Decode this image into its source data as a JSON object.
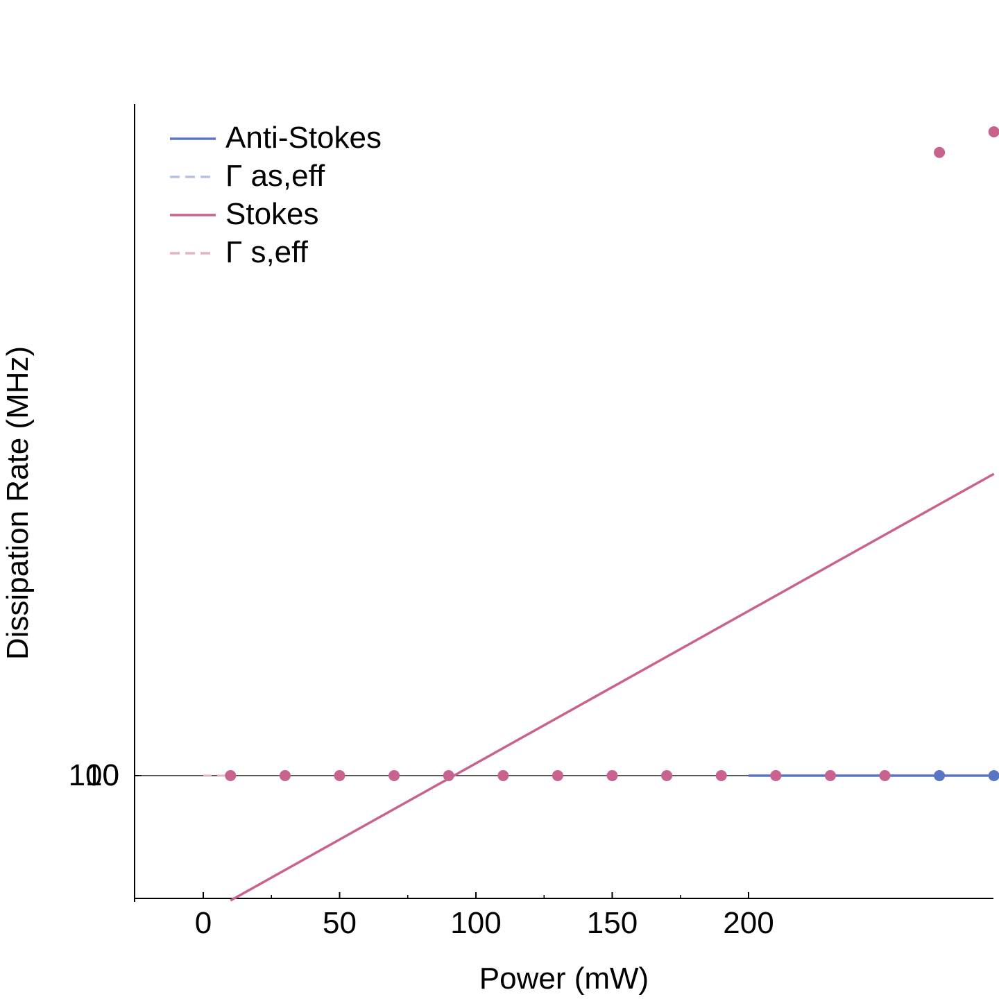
{
  "chart_data": {
    "type": "line",
    "xlabel": "Power (mW)",
    "ylabel": "Dissipation Rate (MHz)",
    "x_ticks": [
      "0",
      "50",
      "100",
      "150",
      "200"
    ],
    "y_tick_labels": [
      "10",
      "100"
    ],
    "xlim": [
      -25,
      290
    ],
    "legend": {
      "placement": "top-left",
      "entries": [
        {
          "label": "Anti-Stokes",
          "color": "#5b75c5",
          "style": "solid"
        },
        {
          "label": "Γ as,eff",
          "color": "#b7c2e6",
          "style": "dashed"
        },
        {
          "label": "Stokes",
          "color": "#c8628e",
          "style": "solid"
        },
        {
          "label": "Γ s,eff",
          "color": "#e4b2c7",
          "style": "dashed"
        }
      ]
    },
    "series": [
      {
        "name": "Anti-Stokes",
        "color": "#5b75c5",
        "kind": "line",
        "x": [
          200,
          290
        ],
        "y": [
          100,
          100
        ]
      },
      {
        "name": "Anti-Stokes",
        "color": "#5b75c5",
        "kind": "points",
        "x": [
          270,
          290
        ],
        "y": [
          100,
          100
        ]
      },
      {
        "name": "Stokes",
        "color": "#c8628e",
        "kind": "line",
        "x": [
          10,
          290
        ],
        "y": [
          55,
          320
        ]
      },
      {
        "name": "Stokes",
        "color": "#c8628e",
        "kind": "points",
        "x": [
          10,
          30,
          50,
          70,
          90,
          110,
          130,
          150,
          170,
          190,
          210,
          230,
          250,
          270,
          290
        ],
        "y": [
          100,
          100,
          100,
          100,
          100,
          100,
          100,
          100,
          100,
          100,
          100,
          100,
          100,
          1100,
          1150
        ]
      }
    ]
  }
}
